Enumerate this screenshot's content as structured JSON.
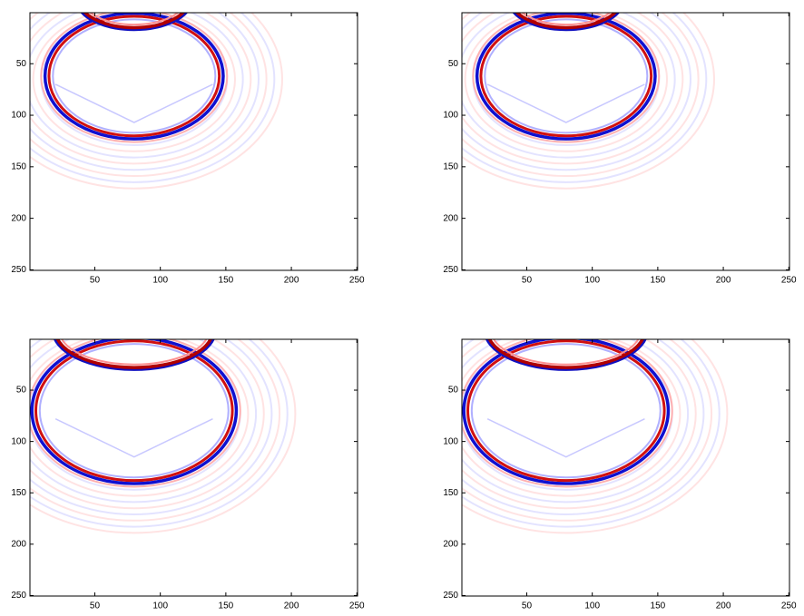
{
  "chart_data": [
    {
      "type": "image",
      "xlim": [
        0.5,
        250.5
      ],
      "ylim": [
        0.5,
        250.5
      ],
      "y_reversed": true,
      "xticks": [
        50,
        100,
        150,
        200,
        250
      ],
      "yticks": [
        50,
        100,
        150,
        200,
        250
      ]
    },
    {
      "type": "image",
      "xlim": [
        0.5,
        250.5
      ],
      "ylim": [
        0.5,
        250.5
      ],
      "y_reversed": true,
      "xticks": [
        50,
        100,
        150,
        200,
        250
      ],
      "yticks": [
        50,
        100,
        150,
        200,
        250
      ]
    },
    {
      "type": "image",
      "xlim": [
        0.5,
        250.5
      ],
      "ylim": [
        0.5,
        250.5
      ],
      "y_reversed": true,
      "xticks": [
        50,
        100,
        150,
        200,
        250
      ],
      "yticks": [
        50,
        100,
        150,
        200,
        250
      ]
    },
    {
      "type": "image",
      "xlim": [
        0.5,
        250.5
      ],
      "ylim": [
        0.5,
        250.5
      ],
      "y_reversed": true,
      "xticks": [
        50,
        100,
        150,
        200,
        250
      ],
      "yticks": [
        50,
        100,
        150,
        200,
        250
      ]
    }
  ]
}
